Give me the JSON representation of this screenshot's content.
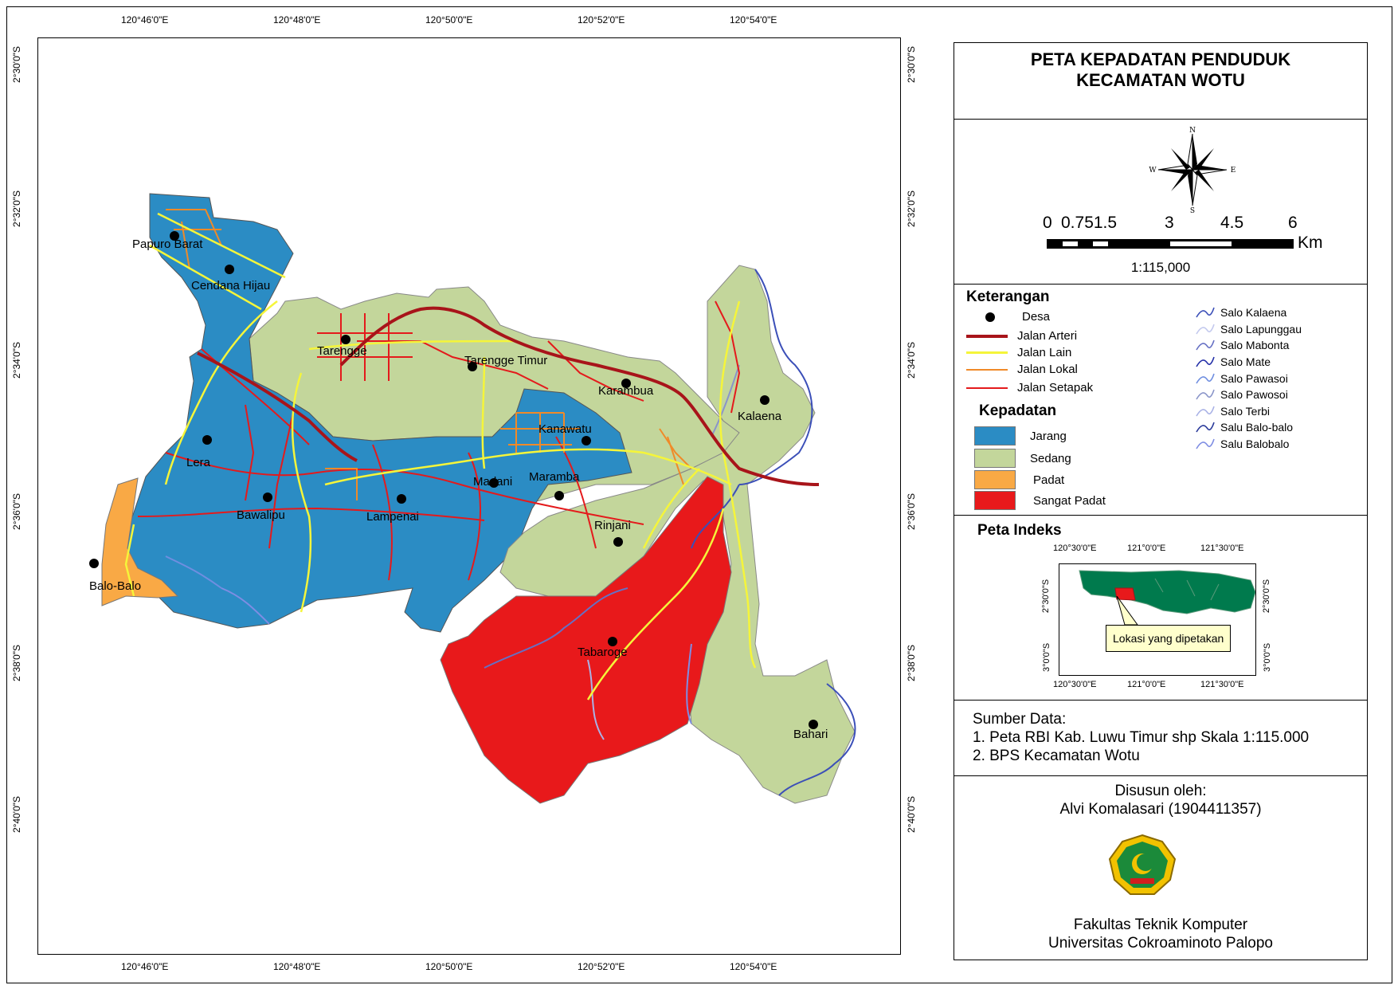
{
  "title": {
    "line1": "PETA KEPADATAN PENDUDUK",
    "line2": "KECAMATAN WOTU"
  },
  "north_arrow": {
    "n": "N",
    "s": "S",
    "e": "E",
    "w": "W"
  },
  "scale_bar": {
    "ticks": [
      "0",
      "0.751.5",
      "3",
      "4.5",
      "6"
    ],
    "unit": "Km",
    "ratio": "1:115,000"
  },
  "coords": {
    "top": [
      "120°46'0\"E",
      "120°48'0\"E",
      "120°50'0\"E",
      "120°52'0\"E",
      "120°54'0\"E"
    ],
    "bottom": [
      "120°46'0\"E",
      "120°48'0\"E",
      "120°50'0\"E",
      "120°52'0\"E",
      "120°54'0\"E"
    ],
    "left": [
      "2°30'0\"S",
      "2°32'0\"S",
      "2°34'0\"S",
      "2°36'0\"S",
      "2°38'0\"S",
      "2°40'0\"S"
    ],
    "right": [
      "2°30'0\"S",
      "2°32'0\"S",
      "2°34'0\"S",
      "2°36'0\"S",
      "2°38'0\"S",
      "2°40'0\"S"
    ]
  },
  "legend": {
    "heading": "Keterangan",
    "symbols": [
      {
        "label": "Desa",
        "kind": "dot"
      },
      {
        "label": "Jalan Arteri",
        "color": "#a8141a"
      },
      {
        "label": "Jalan Lain",
        "color": "#f5f53a"
      },
      {
        "label": "Jalan Lokal",
        "color": "#f08a28"
      },
      {
        "label": "Jalan Setapak",
        "color": "#e41a1c"
      }
    ],
    "rivers": [
      {
        "label": "Salo Kalaena",
        "color": "#3b4fb8"
      },
      {
        "label": "Salo Lapunggau",
        "color": "#c3c9ee"
      },
      {
        "label": "Salo Mabonta",
        "color": "#6670c4"
      },
      {
        "label": "Salo Mate",
        "color": "#2430a8"
      },
      {
        "label": "Salo Pawasoi",
        "color": "#6f8ee0"
      },
      {
        "label": "Salo Pawosoi",
        "color": "#8a95c9"
      },
      {
        "label": "Salo Terbi",
        "color": "#a9b2e6"
      },
      {
        "label": "Salu Balo-balo",
        "color": "#2a3a9a"
      },
      {
        "label": "Salu Balobalo",
        "color": "#7e8de3"
      }
    ],
    "density_heading": "Kepadatan",
    "density": [
      {
        "label": "Jarang",
        "color": "#2b8cc4"
      },
      {
        "label": "Sedang",
        "color": "#c3d69b"
      },
      {
        "label": "Padat",
        "color": "#f9a945"
      },
      {
        "label": "Sangat Padat",
        "color": "#e8191b"
      }
    ]
  },
  "index_map": {
    "heading": "Peta Indeks",
    "top": [
      "120°30'0\"E",
      "121°0'0\"E",
      "121°30'0\"E"
    ],
    "bottom": [
      "120°30'0\"E",
      "121°0'0\"E",
      "121°30'0\"E"
    ],
    "left": [
      "2°30'0\"S",
      "3°0'0\"S"
    ],
    "right": [
      "2°30'0\"S",
      "3°0'0\"S"
    ],
    "callout": "Lokasi yang dipetakan"
  },
  "source": {
    "heading": "Sumber Data:",
    "items": [
      "1. Peta RBI Kab. Luwu Timur shp Skala 1:115.000",
      "2. BPS Kecamatan Wotu"
    ]
  },
  "credits": {
    "by_label": "Disusun oleh:",
    "author": "Alvi Komalasari (1904411357)",
    "faculty": "Fakultas Teknik Komputer",
    "university": "Universitas Cokroaminoto Palopo"
  },
  "villages": [
    "Papuro Barat",
    "Cendana Hijau",
    "Tarengge",
    "Tarengge Timur",
    "Karambua",
    "Kalaena",
    "Lera",
    "Kanawatu",
    "Bawalipu",
    "Lampenai",
    "Madani",
    "Maramba",
    "Rinjani",
    "Balo-Balo",
    "Tabaroge",
    "Bahari"
  ]
}
